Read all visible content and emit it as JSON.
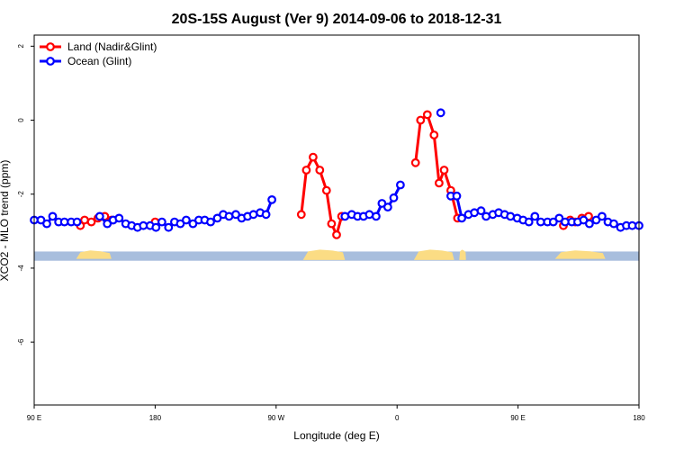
{
  "chart_data": {
    "type": "line",
    "title": "20S-15S August (Ver 9)   2014-09-06 to 2018-12-31",
    "xlabel": "Longitude (deg E)",
    "ylabel": "XCO2 - MLO trend (ppm)",
    "xlim": [
      90,
      450
    ],
    "ylim": [
      -7.7,
      2.3
    ],
    "xticks": [
      {
        "value": 90,
        "label": "90 E"
      },
      {
        "value": 162,
        "label": "180"
      },
      {
        "value": 234,
        "label": "90 W"
      },
      {
        "value": 306,
        "label": "0"
      },
      {
        "value": 378,
        "label": "90 E"
      },
      {
        "value": 450,
        "label": "180"
      }
    ],
    "yticks": [
      {
        "value": 2,
        "label": "2"
      },
      {
        "value": 0,
        "label": "0"
      },
      {
        "value": -2,
        "label": "-2"
      },
      {
        "value": -4,
        "label": "-4"
      },
      {
        "value": -6,
        "label": "-6"
      }
    ],
    "legend": {
      "position": "top-left",
      "entries": [
        "Land (Nadir&Glint)",
        "Ocean (Glint)"
      ]
    },
    "colors": {
      "land": "#ff0000",
      "ocean": "#0000ff",
      "ocean_strip": "#a8bedd",
      "land_strip": "#fbdc84"
    },
    "series": [
      {
        "name": "Land (Nadir&Glint)",
        "color": "#ff0000",
        "segments": [
          [
            [
              117.5,
              -2.85
            ],
            [
              120,
              -2.7
            ],
            [
              124,
              -2.75
            ],
            [
              128,
              -2.65
            ],
            [
              132,
              -2.6
            ],
            [
              136,
              -2.7
            ]
          ],
          [
            [
              162,
              -2.75
            ]
          ],
          [
            [
              249,
              -2.55
            ],
            [
              252,
              -1.35
            ],
            [
              256,
              -1.0
            ],
            [
              260,
              -1.35
            ],
            [
              264,
              -1.9
            ],
            [
              267,
              -2.8
            ],
            [
              270,
              -3.1
            ],
            [
              273,
              -2.6
            ]
          ],
          [
            [
              317,
              -1.15
            ],
            [
              320,
              0.0
            ],
            [
              324,
              0.15
            ],
            [
              328,
              -0.4
            ],
            [
              331,
              -1.7
            ],
            [
              334,
              -1.35
            ],
            [
              338,
              -1.9
            ],
            [
              342,
              -2.65
            ]
          ],
          [
            [
              405,
              -2.85
            ],
            [
              409,
              -2.7
            ],
            [
              412,
              -2.75
            ],
            [
              416,
              -2.65
            ],
            [
              420,
              -2.6
            ]
          ]
        ]
      },
      {
        "name": "Ocean (Glint)",
        "color": "#0000ff",
        "segments": [
          [
            [
              90,
              -2.7
            ],
            [
              94,
              -2.7
            ],
            [
              97.5,
              -2.8
            ],
            [
              101,
              -2.6
            ],
            [
              104.5,
              -2.75
            ],
            [
              108,
              -2.75
            ],
            [
              112,
              -2.75
            ],
            [
              115.5,
              -2.75
            ]
          ],
          [
            [
              129,
              -2.6
            ],
            [
              133.5,
              -2.8
            ],
            [
              137,
              -2.7
            ],
            [
              140.5,
              -2.65
            ],
            [
              144.5,
              -2.8
            ],
            [
              148,
              -2.85
            ],
            [
              151.5,
              -2.9
            ],
            [
              155,
              -2.85
            ],
            [
              159,
              -2.85
            ],
            [
              162.5,
              -2.9
            ],
            [
              166,
              -2.75
            ],
            [
              170,
              -2.9
            ],
            [
              173.5,
              -2.75
            ],
            [
              177,
              -2.8
            ],
            [
              180.5,
              -2.7
            ],
            [
              184.5,
              -2.8
            ],
            [
              188,
              -2.7
            ],
            [
              191.5,
              -2.7
            ],
            [
              195,
              -2.75
            ],
            [
              199,
              -2.65
            ],
            [
              202.5,
              -2.55
            ],
            [
              206,
              -2.6
            ],
            [
              210,
              -2.55
            ],
            [
              213.5,
              -2.65
            ],
            [
              217,
              -2.6
            ],
            [
              220.5,
              -2.55
            ],
            [
              224.5,
              -2.5
            ],
            [
              228,
              -2.55
            ],
            [
              231.5,
              -2.15
            ]
          ],
          [
            [
              275,
              -2.6
            ],
            [
              279,
              -2.55
            ],
            [
              282.5,
              -2.6
            ],
            [
              286,
              -2.6
            ],
            [
              289.5,
              -2.55
            ],
            [
              293.5,
              -2.6
            ],
            [
              297,
              -2.25
            ],
            [
              300.5,
              -2.35
            ],
            [
              304,
              -2.1
            ],
            [
              308,
              -1.75
            ]
          ],
          [
            [
              332,
              0.2
            ]
          ],
          [
            [
              338,
              -2.05
            ],
            [
              341.5,
              -2.05
            ],
            [
              344.5,
              -2.65
            ],
            [
              348.5,
              -2.55
            ],
            [
              352,
              -2.5
            ],
            [
              356,
              -2.45
            ],
            [
              359,
              -2.6
            ],
            [
              363,
              -2.55
            ],
            [
              366.5,
              -2.5
            ],
            [
              370,
              -2.55
            ],
            [
              373.5,
              -2.6
            ],
            [
              377.5,
              -2.65
            ],
            [
              381,
              -2.7
            ],
            [
              384.5,
              -2.75
            ],
            [
              388,
              -2.6
            ],
            [
              391.5,
              -2.75
            ],
            [
              395.5,
              -2.75
            ],
            [
              399,
              -2.75
            ],
            [
              402.5,
              -2.65
            ],
            [
              406,
              -2.75
            ],
            [
              410,
              -2.75
            ],
            [
              413.5,
              -2.75
            ],
            [
              417,
              -2.7
            ],
            [
              420.5,
              -2.8
            ],
            [
              424.5,
              -2.7
            ],
            [
              428,
              -2.6
            ],
            [
              431.5,
              -2.75
            ],
            [
              435,
              -2.8
            ],
            [
              439,
              -2.9
            ],
            [
              442.5,
              -2.85
            ],
            [
              446,
              -2.85
            ],
            [
              450,
              -2.85
            ]
          ]
        ]
      }
    ],
    "surface_strip": {
      "y_range": [
        -3.8,
        -3.55
      ],
      "land_blobs": [
        {
          "x": [
            115,
            136
          ],
          "y": [
            -3.75,
            -3.52
          ]
        },
        {
          "x": [
            250,
            275
          ],
          "y": [
            -3.78,
            -3.5
          ]
        },
        {
          "x": [
            316,
            340
          ],
          "y": [
            -3.78,
            -3.5
          ]
        },
        {
          "x": [
            343,
            347
          ],
          "y": [
            -3.78,
            -3.5
          ]
        },
        {
          "x": [
            400,
            430
          ],
          "y": [
            -3.75,
            -3.52
          ]
        }
      ]
    }
  }
}
